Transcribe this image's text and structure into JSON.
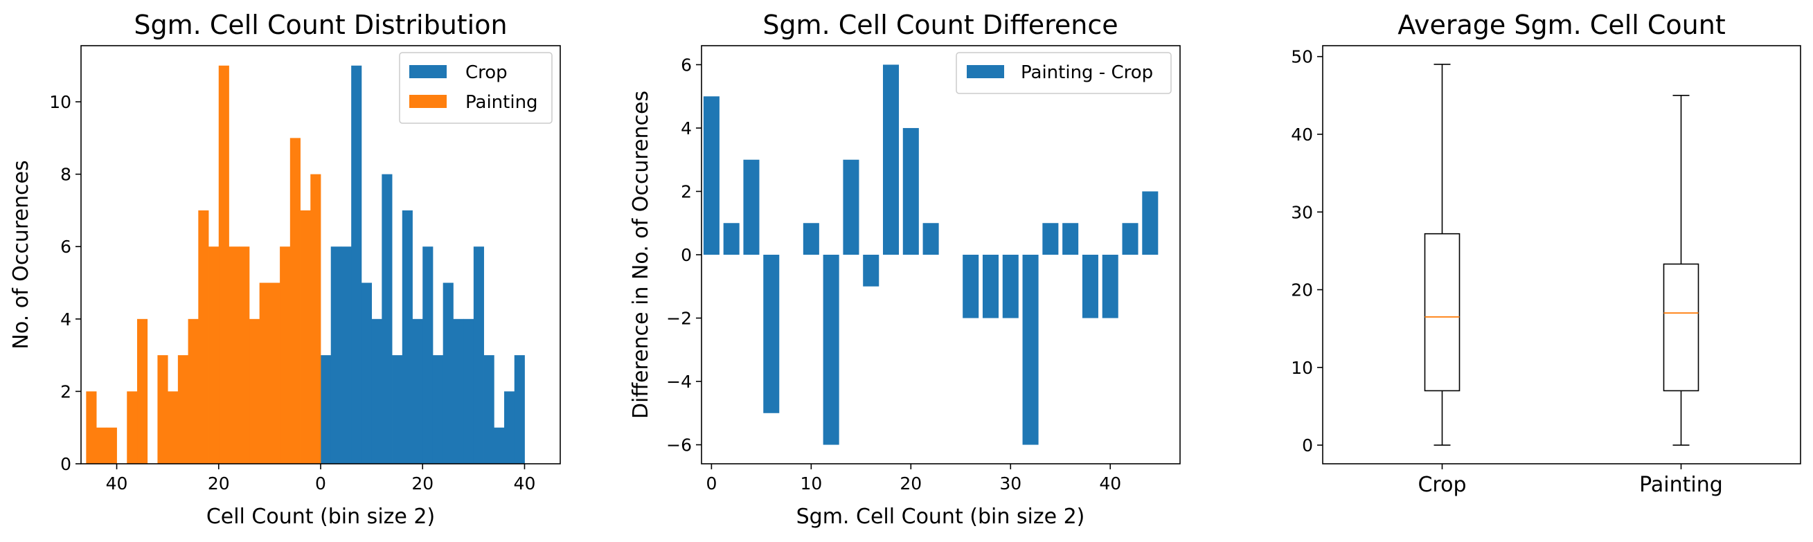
{
  "colors": {
    "crop": "#1f77b4",
    "painting": "#ff7f0e",
    "median": "#ff7f0e",
    "axis": "#000000"
  },
  "chart_data": [
    {
      "type": "bar",
      "subtype": "back-to-back histogram",
      "title": "Sgm. Cell Count Distribution",
      "xlabel": "Cell Count (bin size 2)",
      "ylabel": "No. of Occurences",
      "xlim": [
        -47,
        47
      ],
      "ylim": [
        0,
        11.55
      ],
      "x_ticks": [
        -40,
        -20,
        0,
        20,
        40
      ],
      "x_tick_labels": [
        "40",
        "20",
        "0",
        "20",
        "40"
      ],
      "y_ticks": [
        0,
        2,
        4,
        6,
        8,
        10
      ],
      "y_tick_labels": [
        "0",
        "2",
        "4",
        "6",
        "8",
        "10"
      ],
      "legend": {
        "placement": "top-right",
        "entries": [
          "Crop",
          "Painting"
        ]
      },
      "series": [
        {
          "name": "Crop",
          "bin_start": [
            0,
            2,
            4,
            6,
            8,
            10,
            12,
            14,
            16,
            18,
            20,
            22,
            24,
            26,
            28,
            30,
            32,
            34,
            36,
            38,
            40
          ],
          "values": [
            3,
            6,
            6,
            11,
            5,
            4,
            8,
            3,
            7,
            4,
            6,
            3,
            5,
            4,
            4,
            6,
            3,
            1,
            2,
            3,
            0
          ]
        },
        {
          "name": "Painting",
          "bin_start": [
            -2,
            -4,
            -6,
            -8,
            -10,
            -12,
            -14,
            -16,
            -18,
            -20,
            -22,
            -24,
            -26,
            -28,
            -30,
            -32,
            -34,
            -36,
            -38,
            -40,
            -42,
            -44,
            -46
          ],
          "values": [
            8,
            7,
            9,
            6,
            5,
            5,
            4,
            6,
            6,
            11,
            6,
            7,
            4,
            3,
            2,
            3,
            0,
            4,
            2,
            0,
            1,
            1,
            2
          ]
        }
      ]
    },
    {
      "type": "bar",
      "title": "Sgm. Cell Count Difference",
      "xlabel": "Sgm. Cell Count (bin size 2)",
      "ylabel": "Difference in No. of Occurences",
      "xlim": [
        -1,
        47
      ],
      "ylim": [
        -6.6,
        6.6
      ],
      "x_ticks": [
        0,
        10,
        20,
        30,
        40
      ],
      "x_tick_labels": [
        "0",
        "10",
        "20",
        "30",
        "40"
      ],
      "y_ticks": [
        -6,
        -4,
        -2,
        0,
        2,
        4,
        6
      ],
      "y_tick_labels": [
        "−6",
        "−4",
        "−2",
        "0",
        "2",
        "4",
        "6"
      ],
      "legend": {
        "placement": "top-right",
        "entries": [
          "Painting - Crop"
        ]
      },
      "series": [
        {
          "name": "Painting - Crop",
          "x": [
            0,
            2,
            4,
            6,
            8,
            10,
            12,
            14,
            16,
            18,
            20,
            22,
            24,
            26,
            28,
            30,
            32,
            34,
            36,
            38,
            40,
            42,
            44
          ],
          "values": [
            5,
            1,
            3,
            -5,
            0,
            1,
            -6,
            3,
            -1,
            6,
            4,
            1,
            0,
            -2,
            -2,
            -2,
            -6,
            1,
            1,
            -2,
            -2,
            1,
            2
          ]
        }
      ]
    },
    {
      "type": "box",
      "title": "Average Sgm. Cell Count",
      "xlabel": "",
      "ylabel": "",
      "ylim": [
        -2.4,
        51.4
      ],
      "y_ticks": [
        0,
        10,
        20,
        30,
        40,
        50
      ],
      "y_tick_labels": [
        "0",
        "10",
        "20",
        "30",
        "40",
        "50"
      ],
      "categories": [
        "Crop",
        "Painting"
      ],
      "boxes": [
        {
          "name": "Crop",
          "whisker_low": 0,
          "q1": 7,
          "median": 16.5,
          "q3": 27.2,
          "whisker_high": 49
        },
        {
          "name": "Painting",
          "whisker_low": 0,
          "q1": 7,
          "median": 17,
          "q3": 23.3,
          "whisker_high": 45
        }
      ]
    }
  ]
}
